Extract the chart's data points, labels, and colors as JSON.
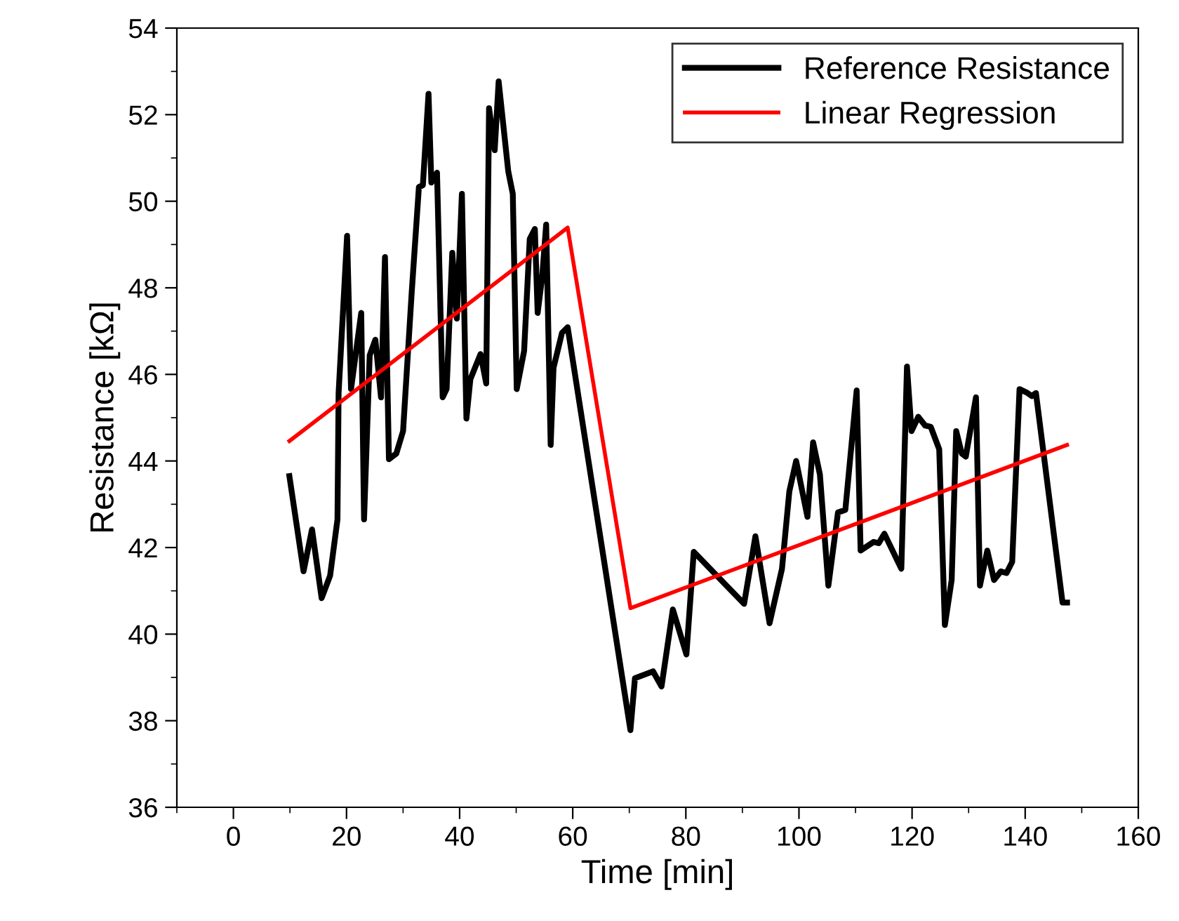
{
  "chart_data": {
    "type": "line",
    "xlabel": "Time [min]",
    "ylabel": "Resistance [kΩ]",
    "xlim": [
      -10,
      160
    ],
    "xticks": [
      0,
      20,
      40,
      60,
      80,
      100,
      120,
      140,
      160
    ],
    "ylim": [
      36,
      54
    ],
    "yticks": [
      36,
      38,
      40,
      42,
      44,
      46,
      48,
      50,
      52,
      54
    ],
    "grid": false,
    "legend": "top right",
    "line_style": "solid",
    "marker": "none",
    "series": [
      {
        "name": "Reference Resistance",
        "color": "#000000",
        "x": [
          9.9,
          12.4,
          13.9,
          15.6,
          17.1,
          18.4,
          18.6,
          20.1,
          20.8,
          22.6,
          23.1,
          24.1,
          25.1,
          26.1,
          26.8,
          27.5,
          28.8,
          30.0,
          31.5,
          32.8,
          33.5,
          34.5,
          35.0,
          36.0,
          37.0,
          37.7,
          38.7,
          39.5,
          40.4,
          41.2,
          41.9,
          43.7,
          44.7,
          45.2,
          46.2,
          46.9,
          48.6,
          49.4,
          50.1,
          51.4,
          52.4,
          53.3,
          53.8,
          54.6,
          55.3,
          56.1,
          56.6,
          58.1,
          59.1,
          70.2,
          71.0,
          74.2,
          75.7,
          77.7,
          80.1,
          81.4,
          90.3,
          92.3,
          94.8,
          97.0,
          98.3,
          99.5,
          101.5,
          102.5,
          103.7,
          105.2,
          106.9,
          108.2,
          110.2,
          110.9,
          113.2,
          114.1,
          115.1,
          118.1,
          119.1,
          119.9,
          121.1,
          122.3,
          123.3,
          124.8,
          125.8,
          127.0,
          127.8,
          128.8,
          129.5,
          131.3,
          132.0,
          133.3,
          134.5,
          135.7,
          136.7,
          137.7,
          139.0,
          140.4,
          141.2,
          141.9,
          146.6,
          147.4
        ],
        "values": [
          43.65,
          41.45,
          42.42,
          40.83,
          41.35,
          42.65,
          45.57,
          49.2,
          45.66,
          47.42,
          42.65,
          46.44,
          46.8,
          45.47,
          48.71,
          44.04,
          44.17,
          44.69,
          47.84,
          50.33,
          50.37,
          52.48,
          50.43,
          50.66,
          45.47,
          45.66,
          48.81,
          47.29,
          50.17,
          44.98,
          45.89,
          46.47,
          45.79,
          52.15,
          51.18,
          52.77,
          50.69,
          50.17,
          45.66,
          46.54,
          49.13,
          49.36,
          47.42,
          48.26,
          49.46,
          44.37,
          46.15,
          46.96,
          47.09,
          37.78,
          38.98,
          39.14,
          38.79,
          40.57,
          39.53,
          41.9,
          40.7,
          42.26,
          40.25,
          41.51,
          43.3,
          44.0,
          42.71,
          44.43,
          43.69,
          41.12,
          42.81,
          42.87,
          45.63,
          41.93,
          42.13,
          42.1,
          42.32,
          41.51,
          46.18,
          44.69,
          45.02,
          44.82,
          44.79,
          44.27,
          40.21,
          41.25,
          44.69,
          44.17,
          44.1,
          45.47,
          41.12,
          41.93,
          41.25,
          41.45,
          41.41,
          41.67,
          45.66,
          45.57,
          45.5,
          45.57,
          40.73,
          40.73
        ]
      },
      {
        "name": "Linear Regression",
        "color": "#ff0000",
        "x": [
          9.9,
          59.1,
          70.2,
          147.4
        ],
        "values": [
          44.46,
          49.39,
          40.6,
          44.37
        ]
      }
    ]
  }
}
